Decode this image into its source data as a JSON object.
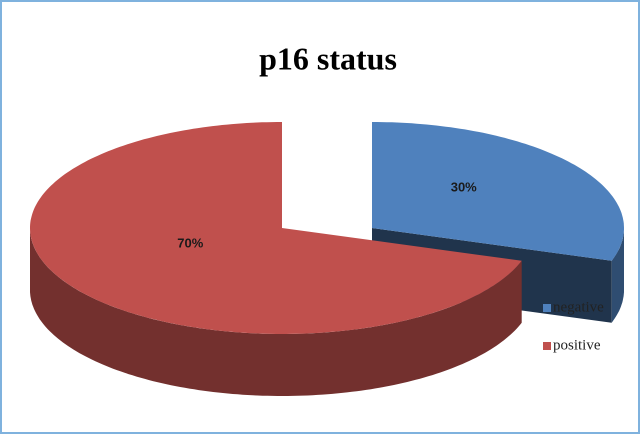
{
  "chart_data": {
    "type": "pie",
    "title": "p16 status",
    "categories": [
      "negative",
      "positive"
    ],
    "values": [
      30,
      70
    ],
    "value_labels": [
      "30%",
      "70%"
    ],
    "colors": [
      "#4f81bd",
      "#c0504d"
    ],
    "legend": "right"
  }
}
